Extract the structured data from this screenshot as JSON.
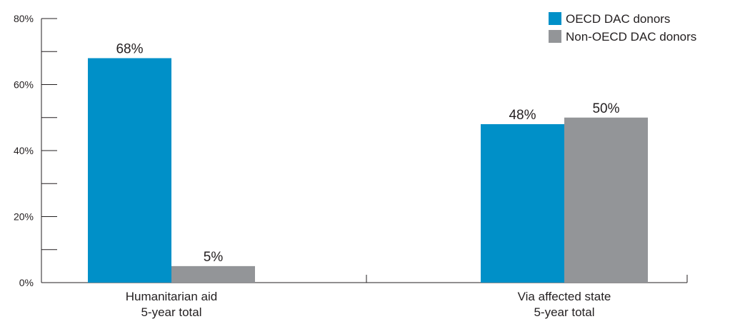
{
  "chart_data": {
    "type": "bar",
    "categories": [
      [
        "Humanitarian aid",
        "5-year total"
      ],
      [
        "Via affected state",
        "5-year total"
      ]
    ],
    "series": [
      {
        "name": "OECD DAC donors",
        "color": "#0090c8",
        "values": [
          68,
          48
        ],
        "labels": [
          "68%",
          "48%"
        ]
      },
      {
        "name": "Non-OECD DAC donors",
        "color": "#939598",
        "values": [
          5,
          50
        ],
        "labels": [
          "5%",
          "50%"
        ]
      }
    ],
    "ylim": [
      0,
      80
    ],
    "yticks": [
      0,
      20,
      40,
      60,
      80
    ],
    "ytick_labels": [
      "0%",
      "20%",
      "40%",
      "60%",
      "80%"
    ],
    "minor_yticks": [
      10,
      30,
      50,
      70
    ],
    "grid": false,
    "legend": "top-right"
  }
}
